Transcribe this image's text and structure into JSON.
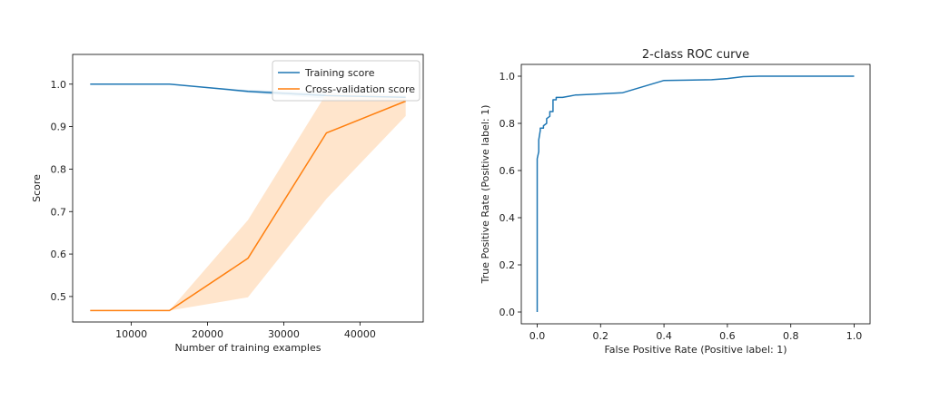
{
  "chart_data": [
    {
      "type": "line",
      "title": "",
      "xlabel": "Number of training examples",
      "ylabel": "Score",
      "xlim": [
        2300,
        48300
      ],
      "ylim": [
        0.44,
        1.07
      ],
      "xticks": [
        10000,
        20000,
        30000,
        40000
      ],
      "xtick_labels": [
        "10000",
        "20000",
        "30000",
        "40000"
      ],
      "yticks": [
        0.5,
        0.6,
        0.7,
        0.8,
        0.9,
        1.0
      ],
      "ytick_labels": [
        "0.5",
        "0.6",
        "0.7",
        "0.8",
        "0.9",
        "1.0"
      ],
      "grid": false,
      "legend": "top-right",
      "x": [
        4600,
        15000,
        25300,
        35600,
        46000
      ],
      "series": [
        {
          "name": "Training score",
          "color": "#1f77b4",
          "values": [
            1.0,
            1.0,
            0.983,
            0.973,
            0.969
          ],
          "band_lower": [
            1.0,
            1.0,
            0.98,
            0.966,
            0.964
          ],
          "band_upper": [
            1.0,
            1.0,
            0.986,
            0.98,
            0.974
          ]
        },
        {
          "name": "Cross-validation score",
          "color": "#ff7f0e",
          "band_color": "#ffe5cc",
          "values": [
            0.467,
            0.467,
            0.59,
            0.885,
            0.96
          ],
          "band_lower": [
            0.467,
            0.467,
            0.498,
            0.73,
            0.925
          ],
          "band_upper": [
            0.467,
            0.467,
            0.68,
            0.978,
            0.972
          ]
        }
      ]
    },
    {
      "type": "line",
      "title": "2-class ROC curve",
      "xlabel": "False Positive Rate (Positive label: 1)",
      "ylabel": "True Positive Rate (Positive label: 1)",
      "xlim": [
        -0.05,
        1.05
      ],
      "ylim": [
        -0.05,
        1.05
      ],
      "xticks": [
        0.0,
        0.2,
        0.4,
        0.6,
        0.8,
        1.0
      ],
      "xtick_labels": [
        "0.0",
        "0.2",
        "0.4",
        "0.6",
        "0.8",
        "1.0"
      ],
      "yticks": [
        0.0,
        0.2,
        0.4,
        0.6,
        0.8,
        1.0
      ],
      "ytick_labels": [
        "0.0",
        "0.2",
        "0.4",
        "0.6",
        "0.8",
        "1.0"
      ],
      "grid": false,
      "series": [
        {
          "color": "#1f77b4",
          "x": [
            0.0,
            0.0,
            0.005,
            0.005,
            0.01,
            0.01,
            0.02,
            0.02,
            0.03,
            0.03,
            0.04,
            0.04,
            0.05,
            0.05,
            0.06,
            0.06,
            0.08,
            0.1,
            0.12,
            0.2,
            0.27,
            0.4,
            0.55,
            0.6,
            0.65,
            0.7,
            1.0
          ],
          "y": [
            0.0,
            0.65,
            0.68,
            0.73,
            0.77,
            0.78,
            0.78,
            0.79,
            0.8,
            0.82,
            0.83,
            0.85,
            0.85,
            0.9,
            0.9,
            0.91,
            0.91,
            0.915,
            0.92,
            0.925,
            0.93,
            0.982,
            0.985,
            0.99,
            0.998,
            1.0,
            1.0
          ]
        }
      ]
    }
  ]
}
